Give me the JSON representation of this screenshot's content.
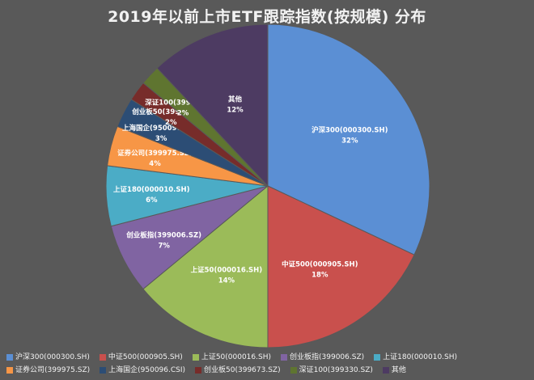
{
  "chart_data": {
    "type": "pie",
    "title": "2019年以前上市ETF跟踪指数(按规模) 分布",
    "legend_position": "bottom",
    "slices": [
      {
        "label": "沪深300(000300.SH)",
        "value": 32,
        "value_label": "32%",
        "color": "#5b8fd4"
      },
      {
        "label": "中证500(000905.SH)",
        "value": 18,
        "value_label": "18%",
        "color": "#c9504d"
      },
      {
        "label": "上证50(000016.SH)",
        "value": 14,
        "value_label": "14%",
        "color": "#9bbb59"
      },
      {
        "label": "创业板指(399006.SZ)",
        "value": 7,
        "value_label": "7%",
        "color": "#8064a2"
      },
      {
        "label": "上证180(000010.SH)",
        "value": 6,
        "value_label": "6%",
        "color": "#4bacc6"
      },
      {
        "label": "证券公司(399975.SZ)",
        "value": 4,
        "value_label": "4%",
        "color": "#f79646"
      },
      {
        "label": "上海国企(950096.CSI)",
        "value": 3,
        "value_label": "3%",
        "color": "#2c4d75"
      },
      {
        "label": "创业板50(399673.SZ)",
        "value": 2,
        "value_label": "2%",
        "color": "#772c2a"
      },
      {
        "label": "深证100(399330.SZ)",
        "value": 2,
        "value_label": "2%",
        "color": "#5f7530"
      },
      {
        "label": "其他",
        "value": 12,
        "value_label": "12%",
        "color": "#4d3b62"
      }
    ]
  },
  "legend_labels": [
    "沪深300(000300.SH)",
    "中证500(000905.SH)",
    "上证50(000016.SH)",
    "创业板指(399006.SZ)",
    "上证180(000010.SH)",
    "证券公司(399975.SZ)",
    "上海国企(950096.CSI)",
    "创业板50(399673.SZ)",
    "深证100(399330.SZ)",
    "其他"
  ]
}
